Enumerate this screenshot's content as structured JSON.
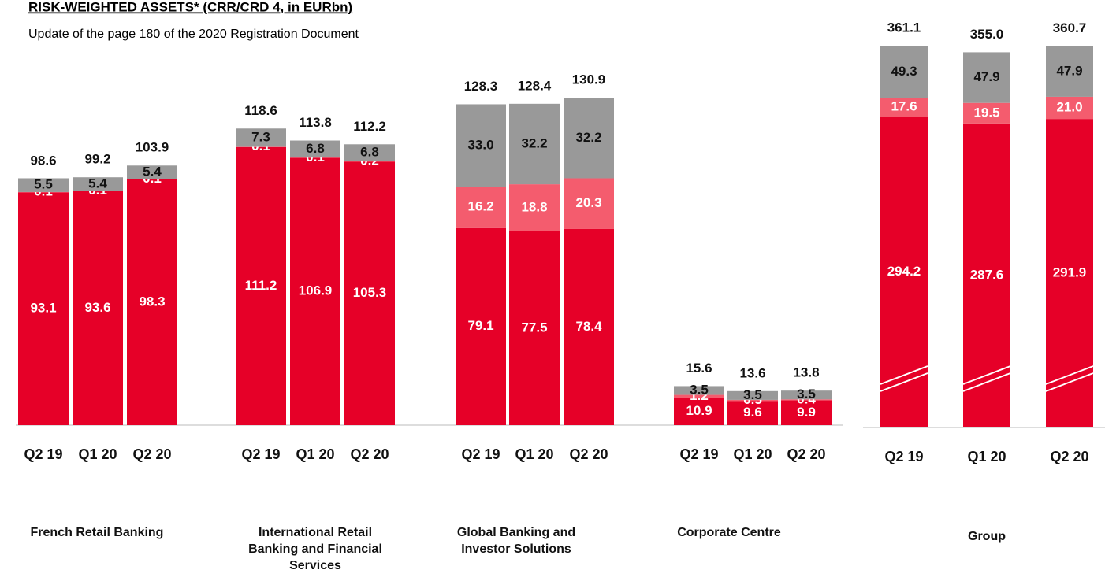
{
  "chart_data": [
    {
      "type": "stacked_bar",
      "title": "RISK-WEIGHTED ASSETS* (CRR/CRD 4, in EURbn)",
      "subtitle": "Update of the page 180 of the 2020 Registration Document",
      "groups": [
        "French Retail Banking",
        "International Retail Banking and Financial Services",
        "Global Banking and Investor Solutions",
        "Corporate Centre"
      ],
      "categories": [
        "Q2 19",
        "Q1 20",
        "Q2 20",
        "Q2 19",
        "Q1 20",
        "Q2 20",
        "Q2 19",
        "Q1 20",
        "Q2 20",
        "Q2 19",
        "Q1 20",
        "Q2 20"
      ],
      "series": [
        {
          "color": "#e60028",
          "values": [
            93.1,
            93.6,
            98.3,
            111.2,
            106.9,
            105.3,
            79.1,
            77.5,
            78.4,
            10.9,
            9.6,
            9.9
          ],
          "value_labels": [
            "93.1",
            "93.6",
            "98.3",
            "111.2",
            "106.9",
            "105.3",
            "79.1",
            "77.5",
            "78.4",
            "10.9",
            "9.6",
            "9.9"
          ]
        },
        {
          "color": "#f45c6e",
          "values": [
            0.1,
            0.1,
            0.1,
            0.1,
            0.1,
            0.2,
            16.2,
            18.8,
            20.3,
            1.2,
            0.5,
            0.4
          ],
          "value_labels": [
            "0.1",
            "0.1",
            "0.1",
            "0.1",
            "0.1",
            "0.2",
            "16.2",
            "18.8",
            "20.3",
            "1.2",
            "0.5",
            "0.4"
          ]
        },
        {
          "color": "#999999",
          "values": [
            5.5,
            5.4,
            5.4,
            7.3,
            6.8,
            6.8,
            33.0,
            32.2,
            32.2,
            3.5,
            3.5,
            3.5
          ],
          "value_labels": [
            "5.5",
            "5.4",
            "5.4",
            "7.3",
            "6.8",
            "6.8",
            "33.0",
            "32.2",
            "32.2",
            "3.5",
            "3.5",
            "3.5"
          ]
        }
      ],
      "totals": [
        98.6,
        99.2,
        103.9,
        118.6,
        113.8,
        112.2,
        128.3,
        128.4,
        130.9,
        15.6,
        13.6,
        13.8
      ],
      "total_labels": [
        "98.6",
        "99.2",
        "103.9",
        "118.6",
        "113.8",
        "112.2",
        "128.3",
        "128.4",
        "130.9",
        "15.6",
        "13.6",
        "13.8"
      ],
      "ylim": [
        0,
        170
      ]
    },
    {
      "type": "stacked_bar",
      "groups": [
        "Group"
      ],
      "categories": [
        "Q2 19",
        "Q1 20",
        "Q2 20"
      ],
      "series": [
        {
          "color": "#e60028",
          "values": [
            294.2,
            287.6,
            291.9
          ],
          "value_labels": [
            "294.2",
            "287.6",
            "291.9"
          ]
        },
        {
          "color": "#f45c6e",
          "values": [
            17.6,
            19.5,
            21.0
          ],
          "value_labels": [
            "17.6",
            "19.5",
            "21.0"
          ]
        },
        {
          "color": "#999999",
          "values": [
            49.3,
            47.9,
            47.9
          ],
          "value_labels": [
            "49.3",
            "47.9",
            "47.9"
          ]
        }
      ],
      "totals": [
        361.1,
        355.0,
        360.7
      ],
      "total_labels": [
        "361.1",
        "355.0",
        "360.7"
      ],
      "ylim": [
        0,
        400
      ]
    }
  ]
}
